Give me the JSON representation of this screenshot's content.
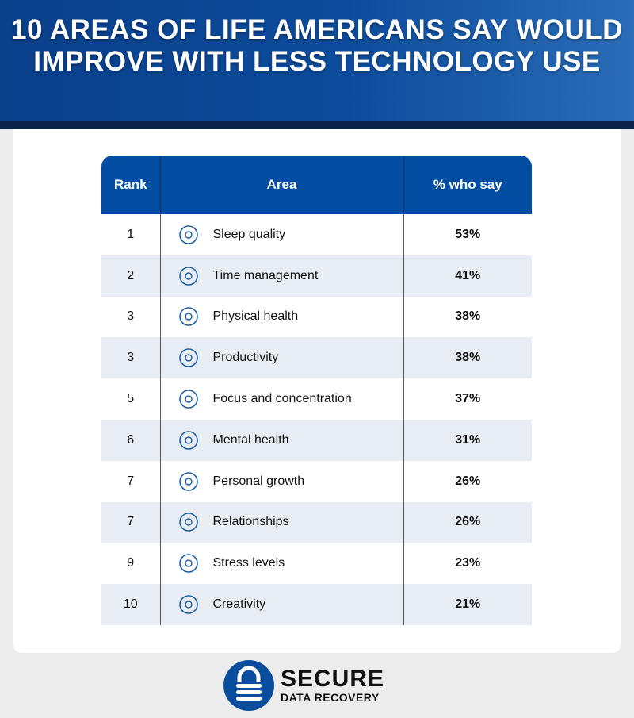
{
  "title": "10 AREAS OF LIFE AMERICANS SAY WOULD IMPROVE WITH LESS TECHNOLOGY USE",
  "colors": {
    "header_blue": "#034ea2",
    "band": "#0c2246",
    "row_alt": "#e8edf4",
    "icon": "#1a5fa8"
  },
  "chart_data": {
    "type": "table",
    "title": "10 AREAS OF LIFE AMERICANS SAY WOULD IMPROVE WITH LESS TECHNOLOGY USE",
    "columns": [
      "Rank",
      "Area",
      "% who say"
    ],
    "rows": [
      {
        "rank": "1",
        "area": "Sleep quality",
        "pct": "53%",
        "icon": "sleep-pillow-icon"
      },
      {
        "rank": "2",
        "area": "Time management",
        "pct": "41%",
        "icon": "calendar-clock-icon"
      },
      {
        "rank": "3",
        "area": "Physical health",
        "pct": "38%",
        "icon": "heart-dumbbell-icon"
      },
      {
        "rank": "3",
        "area": "Productivity",
        "pct": "38%",
        "icon": "growth-chart-icon"
      },
      {
        "rank": "5",
        "area": "Focus and concentration",
        "pct": "37%",
        "icon": "target-icon"
      },
      {
        "rank": "6",
        "area": "Mental health",
        "pct": "31%",
        "icon": "head-brain-icon"
      },
      {
        "rank": "7",
        "area": "Personal growth",
        "pct": "26%",
        "icon": "person-sprout-icon"
      },
      {
        "rank": "7",
        "area": "Relationships",
        "pct": "26%",
        "icon": "heart-people-icon"
      },
      {
        "rank": "9",
        "area": "Stress levels",
        "pct": "23%",
        "icon": "stress-gauge-icon"
      },
      {
        "rank": "10",
        "area": "Creativity",
        "pct": "21%",
        "icon": "lightbulb-icon"
      }
    ]
  },
  "logo": {
    "line1": "SECURE",
    "line2": "DATA RECOVERY"
  }
}
